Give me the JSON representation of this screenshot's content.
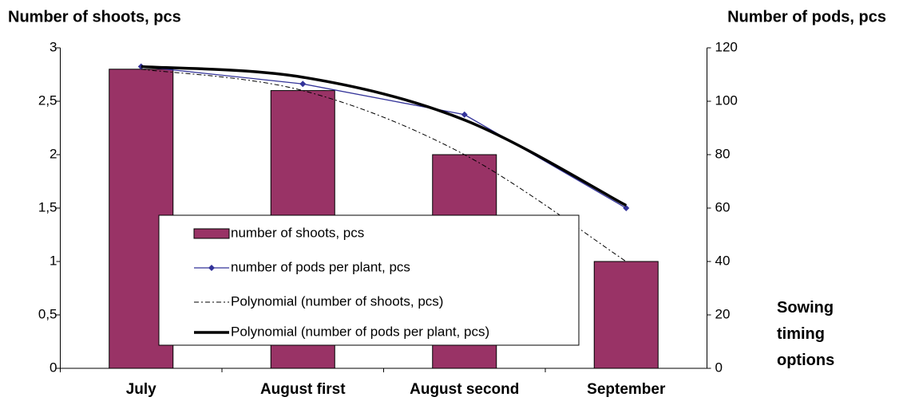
{
  "chart_data": {
    "type": "bar",
    "y_title": "Number of shoots, pcs",
    "y2_title": "Number of pods, pcs",
    "x_title": "Sowing timing options",
    "categories": [
      "July",
      "August first",
      "August second",
      "September"
    ],
    "ylim": [
      0,
      3
    ],
    "yticks": [
      0,
      {
        "value": 0.5,
        "label": "0,5"
      },
      1,
      {
        "value": 1.5,
        "label": "1,5"
      },
      2,
      {
        "value": 2.5,
        "label": "2,5"
      },
      3
    ],
    "y2lim": [
      0,
      120
    ],
    "y2ticks": [
      0,
      20,
      40,
      60,
      80,
      100,
      120
    ],
    "grid": false,
    "series": [
      {
        "name": "number of shoots, pcs",
        "type": "bar",
        "color": "#993366",
        "values": [
          2.8,
          2.6,
          2.0,
          1.0
        ]
      },
      {
        "name": "number of pods per plant, pcs",
        "type": "line",
        "axis": "y2",
        "color": "#333399",
        "values": [
          113,
          106.5,
          95,
          60
        ]
      },
      {
        "name": "Polynomial (number of shoots, pcs)",
        "type": "trend",
        "style": "dashdot",
        "color": "#000000",
        "values": [
          2.8,
          2.6,
          2.0,
          1.0
        ]
      },
      {
        "name": "Polynomial (number of pods per plant, pcs)",
        "type": "trend",
        "style": "solid",
        "axis": "y2",
        "color": "#000000",
        "values": [
          113,
          109,
          93,
          61
        ]
      }
    ]
  }
}
